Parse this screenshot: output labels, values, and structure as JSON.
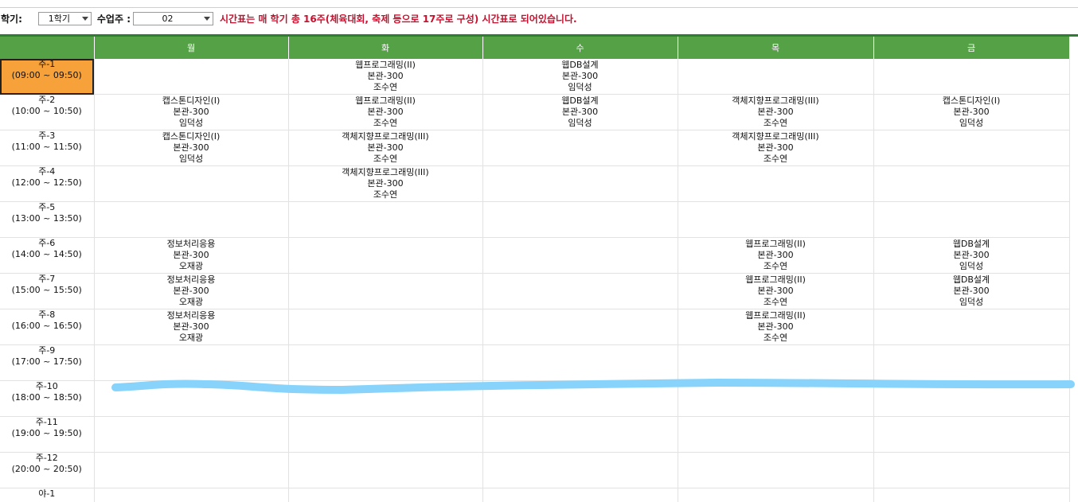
{
  "toolbar": {
    "semester_label": "학기:",
    "semester_value": "1학기",
    "week_label": "수업주 :",
    "week_value": "02",
    "notice": "시간표는 매 학기 총 16주(체육대회, 축제 등으로 17주로 구성) 시간표로 되어있습니다."
  },
  "days": [
    "월",
    "화",
    "수",
    "목",
    "금"
  ],
  "rows": [
    {
      "period": "주-1",
      "time": "(09:00 ~ 09:50)",
      "active": true,
      "cells": [
        null,
        {
          "course": "웹프로그래밍(II)",
          "room": "본관-300",
          "teacher": "조수연"
        },
        {
          "course": "웹DB설계",
          "room": "본관-300",
          "teacher": "임덕성"
        },
        null,
        null
      ]
    },
    {
      "period": "주-2",
      "time": "(10:00 ~ 10:50)",
      "cells": [
        {
          "course": "캡스톤디자인(I)",
          "room": "본관-300",
          "teacher": "임덕성"
        },
        {
          "course": "웹프로그래밍(II)",
          "room": "본관-300",
          "teacher": "조수연"
        },
        {
          "course": "웹DB설계",
          "room": "본관-300",
          "teacher": "임덕성"
        },
        {
          "course": "객체지향프로그래밍(III)",
          "room": "본관-300",
          "teacher": "조수연"
        },
        {
          "course": "캡스톤디자인(I)",
          "room": "본관-300",
          "teacher": "임덕성"
        }
      ]
    },
    {
      "period": "주-3",
      "time": "(11:00 ~ 11:50)",
      "cells": [
        {
          "course": "캡스톤디자인(I)",
          "room": "본관-300",
          "teacher": "임덕성"
        },
        {
          "course": "객체지향프로그래밍(III)",
          "room": "본관-300",
          "teacher": "조수연"
        },
        null,
        {
          "course": "객체지향프로그래밍(III)",
          "room": "본관-300",
          "teacher": "조수연"
        },
        null
      ]
    },
    {
      "period": "주-4",
      "time": "(12:00 ~ 12:50)",
      "cells": [
        null,
        {
          "course": "객체지향프로그래밍(III)",
          "room": "본관-300",
          "teacher": "조수연"
        },
        null,
        null,
        null
      ]
    },
    {
      "period": "주-5",
      "time": "(13:00 ~ 13:50)",
      "cells": [
        null,
        null,
        null,
        null,
        null
      ]
    },
    {
      "period": "주-6",
      "time": "(14:00 ~ 14:50)",
      "cells": [
        {
          "course": "정보처리응용",
          "room": "본관-300",
          "teacher": "오재광"
        },
        null,
        null,
        {
          "course": "웹프로그래밍(II)",
          "room": "본관-300",
          "teacher": "조수연"
        },
        {
          "course": "웹DB설계",
          "room": "본관-300",
          "teacher": "임덕성"
        }
      ]
    },
    {
      "period": "주-7",
      "time": "(15:00 ~ 15:50)",
      "cells": [
        {
          "course": "정보처리응용",
          "room": "본관-300",
          "teacher": "오재광"
        },
        null,
        null,
        {
          "course": "웹프로그래밍(II)",
          "room": "본관-300",
          "teacher": "조수연"
        },
        {
          "course": "웹DB설계",
          "room": "본관-300",
          "teacher": "임덕성"
        }
      ]
    },
    {
      "period": "주-8",
      "time": "(16:00 ~ 16:50)",
      "cells": [
        {
          "course": "정보처리응용",
          "room": "본관-300",
          "teacher": "오재광"
        },
        null,
        null,
        {
          "course": "웹프로그래밍(II)",
          "room": "본관-300",
          "teacher": "조수연"
        },
        null
      ]
    },
    {
      "period": "주-9",
      "time": "(17:00 ~ 17:50)",
      "cells": [
        null,
        null,
        null,
        null,
        null
      ]
    },
    {
      "period": "주-10",
      "time": "(18:00 ~ 18:50)",
      "cells": [
        null,
        null,
        null,
        null,
        null
      ]
    },
    {
      "period": "주-11",
      "time": "(19:00 ~ 19:50)",
      "cells": [
        null,
        null,
        null,
        null,
        null
      ]
    },
    {
      "period": "주-12",
      "time": "(20:00 ~ 20:50)",
      "cells": [
        null,
        null,
        null,
        null,
        null
      ]
    },
    {
      "period": "야-1",
      "time": "",
      "cells": [
        null,
        null,
        null,
        null,
        null
      ]
    }
  ],
  "colors": {
    "header_green": "#55a145",
    "top_border_green": "#2e7d32",
    "active_period": "#f7a13a",
    "notice_red": "#c8102e",
    "highlight_stroke": "#87d3fb"
  }
}
